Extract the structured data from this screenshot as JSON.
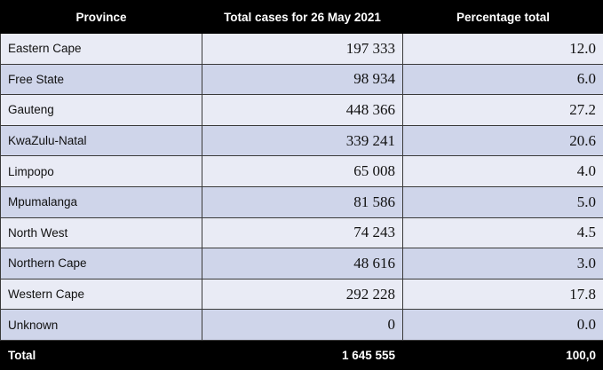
{
  "table": {
    "headers": [
      "Province",
      "Total cases for 26 May 2021",
      "Percentage total"
    ],
    "rows": [
      {
        "province": "Eastern Cape",
        "cases": "197 333",
        "percent": "12.0"
      },
      {
        "province": "Free State",
        "cases": "98 934",
        "percent": "6.0"
      },
      {
        "province": "Gauteng",
        "cases": "448 366",
        "percent": "27.2"
      },
      {
        "province": "KwaZulu-Natal",
        "cases": "339 241",
        "percent": "20.6"
      },
      {
        "province": "Limpopo",
        "cases": "65 008",
        "percent": "4.0"
      },
      {
        "province": "Mpumalanga",
        "cases": "81 586",
        "percent": "5.0"
      },
      {
        "province": "North West",
        "cases": "74 243",
        "percent": "4.5"
      },
      {
        "province": "Northern Cape",
        "cases": "48 616",
        "percent": "3.0"
      },
      {
        "province": "Western Cape",
        "cases": "292 228",
        "percent": "17.8"
      },
      {
        "province": "Unknown",
        "cases": "0",
        "percent": "0.0"
      }
    ],
    "total": {
      "label": "Total",
      "cases": "1 645 555",
      "percent": "100,0"
    }
  },
  "colors": {
    "header_bg": "#000000",
    "row_light": "#e9ebf5",
    "row_dark": "#cfd5ea"
  }
}
